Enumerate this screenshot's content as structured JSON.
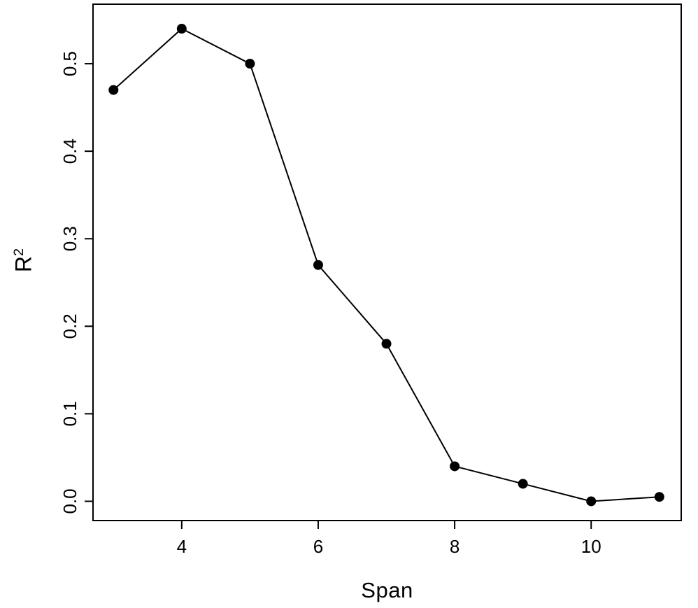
{
  "chart_data": {
    "type": "line",
    "title": "",
    "xlabel": "Span",
    "ylabel": "R²",
    "ylabel_base": "R",
    "ylabel_exponent": "2",
    "x": [
      3,
      4,
      5,
      6,
      7,
      8,
      9,
      10,
      11
    ],
    "y": [
      0.47,
      0.54,
      0.5,
      0.27,
      0.18,
      0.04,
      0.02,
      0.0,
      0.005
    ],
    "xticks": [
      4,
      6,
      8,
      10
    ],
    "yticks": [
      0.0,
      0.1,
      0.2,
      0.3,
      0.4,
      0.5
    ],
    "xlim": [
      2.7,
      11.32
    ],
    "ylim": [
      -0.022,
      0.568
    ],
    "grid": false,
    "legend": false,
    "marker": "filled-circle",
    "marker_color": "#000000",
    "line_color": "#000000",
    "axis_color": "#000000",
    "background": "#ffffff"
  }
}
